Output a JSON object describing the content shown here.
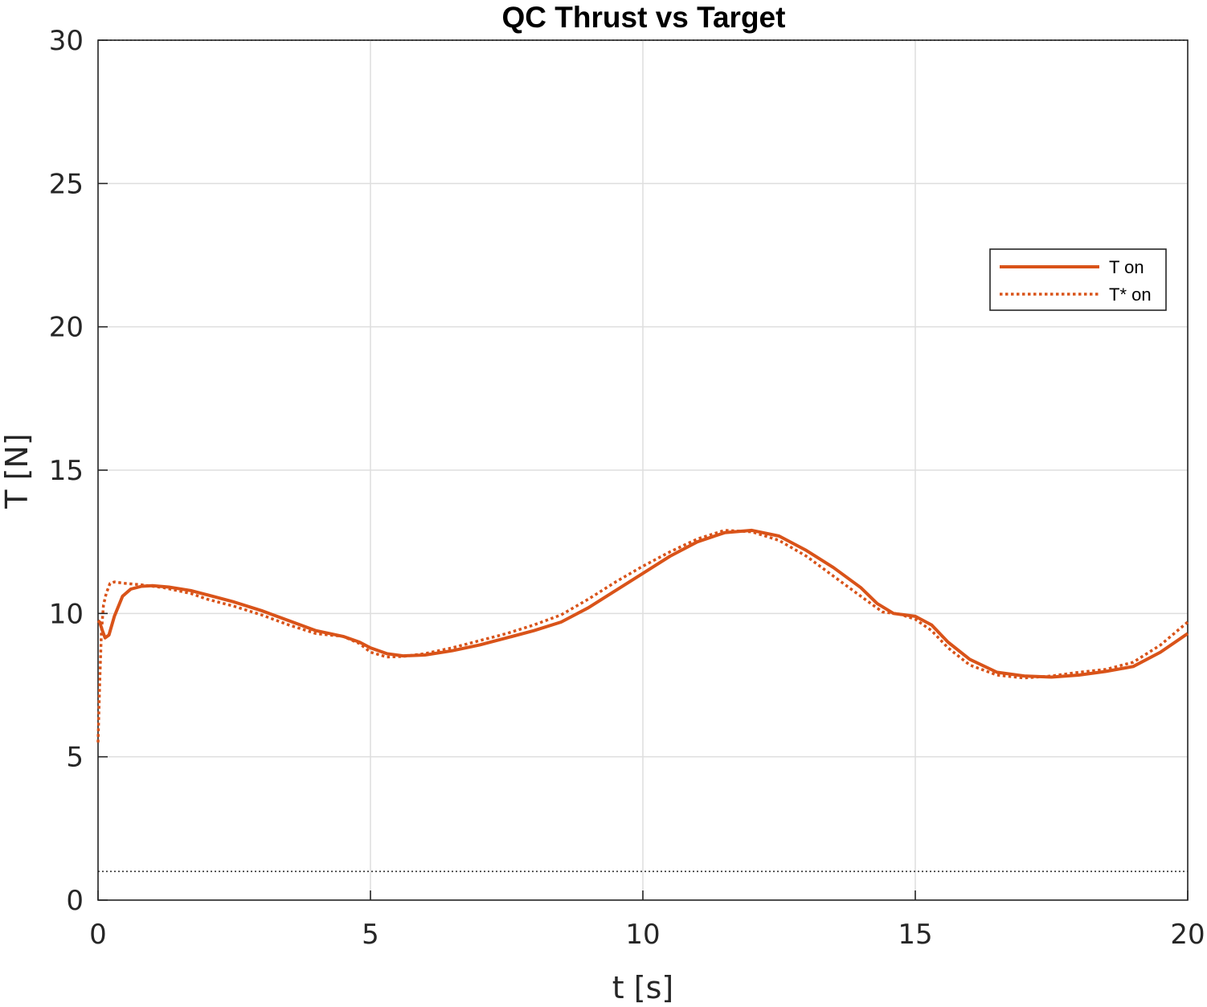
{
  "chart_data": {
    "type": "line",
    "title": "QC Thrust vs Target",
    "xlabel": "t [s]",
    "ylabel": "T [N]",
    "xlim": [
      0,
      20
    ],
    "ylim": [
      0,
      30
    ],
    "xticks": [
      0,
      5,
      10,
      15,
      20
    ],
    "yticks": [
      0,
      5,
      10,
      15,
      20,
      25,
      30
    ],
    "grid": true,
    "legend_position": "upper-right",
    "series": [
      {
        "name": "T on",
        "style": "solid",
        "color": "#D95319",
        "x": [
          0,
          0.03,
          0.08,
          0.13,
          0.2,
          0.3,
          0.45,
          0.6,
          0.8,
          1.0,
          1.3,
          1.7,
          2.0,
          2.5,
          3.0,
          3.5,
          4.0,
          4.5,
          4.8,
          5.0,
          5.3,
          5.6,
          6.0,
          6.5,
          7.0,
          7.5,
          8.0,
          8.5,
          9.0,
          9.5,
          10.0,
          10.5,
          11.0,
          11.5,
          12.0,
          12.5,
          13.0,
          13.5,
          14.0,
          14.3,
          14.6,
          15.0,
          15.3,
          15.6,
          16.0,
          16.5,
          17.0,
          17.5,
          18.0,
          18.5,
          19.0,
          19.5,
          20.0
        ],
        "y": [
          9.75,
          9.7,
          9.4,
          9.15,
          9.25,
          9.9,
          10.6,
          10.85,
          10.95,
          10.97,
          10.92,
          10.8,
          10.65,
          10.4,
          10.1,
          9.75,
          9.4,
          9.2,
          9.0,
          8.8,
          8.6,
          8.52,
          8.55,
          8.7,
          8.9,
          9.15,
          9.4,
          9.7,
          10.2,
          10.8,
          11.4,
          12.0,
          12.5,
          12.82,
          12.9,
          12.7,
          12.2,
          11.6,
          10.9,
          10.35,
          10.0,
          9.9,
          9.6,
          9.0,
          8.4,
          7.95,
          7.82,
          7.78,
          7.85,
          7.98,
          8.15,
          8.65,
          9.3
        ]
      },
      {
        "name": "T* on",
        "style": "dotted",
        "color": "#D95319",
        "x": [
          0,
          0.03,
          0.06,
          0.1,
          0.15,
          0.22,
          0.3,
          0.5,
          0.8,
          1.2,
          1.7,
          2.0,
          2.5,
          3.0,
          3.5,
          4.0,
          4.5,
          4.8,
          5.0,
          5.3,
          5.6,
          6.0,
          6.5,
          7.0,
          7.5,
          8.0,
          8.5,
          9.0,
          9.5,
          10.0,
          10.5,
          11.0,
          11.5,
          12.0,
          12.5,
          13.0,
          13.5,
          14.0,
          14.4,
          14.7,
          15.0,
          15.3,
          15.6,
          16.0,
          16.5,
          17.0,
          17.5,
          18.0,
          18.5,
          19.0,
          19.5,
          20.0
        ],
        "y": [
          5.5,
          7.5,
          9.3,
          10.3,
          10.7,
          11.05,
          11.1,
          11.05,
          11.0,
          10.9,
          10.7,
          10.5,
          10.25,
          9.95,
          9.6,
          9.3,
          9.2,
          8.95,
          8.65,
          8.48,
          8.5,
          8.6,
          8.8,
          9.05,
          9.3,
          9.6,
          9.95,
          10.5,
          11.1,
          11.65,
          12.15,
          12.6,
          12.9,
          12.85,
          12.55,
          12.0,
          11.3,
          10.6,
          10.05,
          9.98,
          9.8,
          9.4,
          8.8,
          8.2,
          7.85,
          7.75,
          7.82,
          7.95,
          8.05,
          8.3,
          8.9,
          9.7
        ]
      }
    ],
    "reference_lines": [
      {
        "y": 30,
        "style": "dotted",
        "color": "#333333"
      },
      {
        "y": 1,
        "style": "dotted",
        "color": "#333333"
      }
    ]
  }
}
